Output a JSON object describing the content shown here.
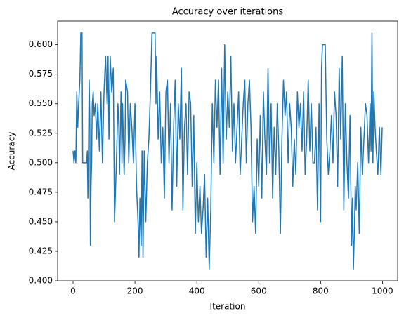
{
  "chart_data": {
    "type": "line",
    "title": "Accuracy over iterations",
    "xlabel": "Iteration",
    "ylabel": "Accuracy",
    "x": [
      0,
      3,
      6,
      9,
      12,
      15,
      18,
      22,
      25,
      29,
      31,
      44,
      46,
      48,
      50,
      52,
      54,
      56,
      58,
      60,
      62,
      65,
      68,
      72,
      76,
      80,
      85,
      90,
      95,
      100,
      105,
      110,
      113,
      116,
      120,
      125,
      130,
      134,
      140,
      145,
      148,
      150,
      155,
      158,
      160,
      165,
      168,
      170,
      176,
      180,
      185,
      190,
      195,
      200,
      205,
      210,
      213,
      216,
      220,
      223,
      226,
      230,
      235,
      240,
      245,
      250,
      255,
      265,
      268,
      270,
      275,
      280,
      285,
      290,
      295,
      300,
      305,
      310,
      315,
      320,
      325,
      330,
      335,
      340,
      345,
      350,
      355,
      360,
      365,
      370,
      375,
      380,
      385,
      390,
      395,
      400,
      405,
      410,
      415,
      420,
      425,
      430,
      435,
      440,
      445,
      450,
      455,
      460,
      465,
      470,
      475,
      480,
      485,
      490,
      495,
      500,
      505,
      510,
      515,
      520,
      525,
      530,
      535,
      540,
      545,
      550,
      555,
      560,
      565,
      570,
      575,
      580,
      585,
      590,
      595,
      600,
      605,
      610,
      615,
      620,
      625,
      630,
      635,
      640,
      645,
      650,
      655,
      660,
      665,
      670,
      675,
      680,
      685,
      690,
      695,
      700,
      705,
      710,
      715,
      720,
      725,
      730,
      735,
      740,
      745,
      750,
      755,
      760,
      765,
      770,
      775,
      780,
      785,
      790,
      795,
      800,
      803,
      806,
      815,
      818,
      820,
      825,
      830,
      835,
      840,
      845,
      850,
      855,
      860,
      865,
      870,
      875,
      880,
      885,
      890,
      895,
      900,
      903,
      906,
      909,
      912,
      915,
      920,
      925,
      930,
      935,
      940,
      945,
      950,
      955,
      960,
      963,
      966,
      969,
      972,
      976,
      980,
      985,
      990,
      995,
      999
    ],
    "series": [
      {
        "name": "Accuracy",
        "color": "#1f77b4",
        "values": [
          0.51,
          0.5,
          0.51,
          0.5,
          0.56,
          0.53,
          0.55,
          0.57,
          0.61,
          0.61,
          0.5,
          0.5,
          0.51,
          0.47,
          0.51,
          0.57,
          0.54,
          0.43,
          0.48,
          0.5,
          0.55,
          0.56,
          0.54,
          0.55,
          0.52,
          0.55,
          0.51,
          0.56,
          0.5,
          0.56,
          0.59,
          0.55,
          0.59,
          0.52,
          0.59,
          0.56,
          0.58,
          0.45,
          0.5,
          0.55,
          0.53,
          0.49,
          0.56,
          0.5,
          0.55,
          0.49,
          0.52,
          0.57,
          0.56,
          0.5,
          0.55,
          0.53,
          0.5,
          0.55,
          0.48,
          0.45,
          0.42,
          0.47,
          0.43,
          0.51,
          0.42,
          0.51,
          0.45,
          0.5,
          0.52,
          0.56,
          0.61,
          0.61,
          0.55,
          0.59,
          0.52,
          0.56,
          0.5,
          0.53,
          0.47,
          0.56,
          0.57,
          0.5,
          0.55,
          0.46,
          0.53,
          0.57,
          0.48,
          0.55,
          0.52,
          0.58,
          0.46,
          0.53,
          0.55,
          0.49,
          0.56,
          0.55,
          0.48,
          0.54,
          0.44,
          0.5,
          0.45,
          0.48,
          0.44,
          0.46,
          0.49,
          0.42,
          0.47,
          0.41,
          0.46,
          0.55,
          0.5,
          0.57,
          0.53,
          0.57,
          0.49,
          0.58,
          0.5,
          0.6,
          0.52,
          0.56,
          0.53,
          0.59,
          0.51,
          0.55,
          0.5,
          0.53,
          0.56,
          0.49,
          0.52,
          0.55,
          0.57,
          0.5,
          0.55,
          0.57,
          0.53,
          0.45,
          0.48,
          0.44,
          0.52,
          0.48,
          0.54,
          0.47,
          0.56,
          0.52,
          0.49,
          0.58,
          0.5,
          0.55,
          0.47,
          0.53,
          0.49,
          0.55,
          0.51,
          0.44,
          0.52,
          0.57,
          0.54,
          0.56,
          0.5,
          0.55,
          0.53,
          0.48,
          0.52,
          0.49,
          0.56,
          0.53,
          0.55,
          0.51,
          0.56,
          0.49,
          0.52,
          0.57,
          0.51,
          0.55,
          0.5,
          0.5,
          0.53,
          0.46,
          0.55,
          0.45,
          0.58,
          0.6,
          0.6,
          0.55,
          0.52,
          0.49,
          0.51,
          0.54,
          0.5,
          0.56,
          0.54,
          0.48,
          0.58,
          0.52,
          0.59,
          0.46,
          0.55,
          0.5,
          0.47,
          0.54,
          0.43,
          0.47,
          0.41,
          0.44,
          0.48,
          0.46,
          0.5,
          0.44,
          0.53,
          0.49,
          0.52,
          0.55,
          0.54,
          0.5,
          0.55,
          0.51,
          0.61,
          0.5,
          0.56,
          0.53,
          0.51,
          0.49,
          0.53,
          0.49,
          0.53
        ]
      }
    ],
    "xlim": [
      -49.95,
      1048.95
    ],
    "ylim": [
      0.4,
      0.62
    ],
    "xticks": [
      0,
      200,
      400,
      600,
      800,
      1000
    ],
    "yticks": [
      {
        "value": 0.4,
        "label": "0.400"
      },
      {
        "value": 0.425,
        "label": "0.425"
      },
      {
        "value": 0.45,
        "label": "0.450"
      },
      {
        "value": 0.475,
        "label": "0.475"
      },
      {
        "value": 0.5,
        "label": "0.500"
      },
      {
        "value": 0.525,
        "label": "0.525"
      },
      {
        "value": 0.55,
        "label": "0.550"
      },
      {
        "value": 0.575,
        "label": "0.575"
      },
      {
        "value": 0.6,
        "label": "0.600"
      }
    ]
  }
}
